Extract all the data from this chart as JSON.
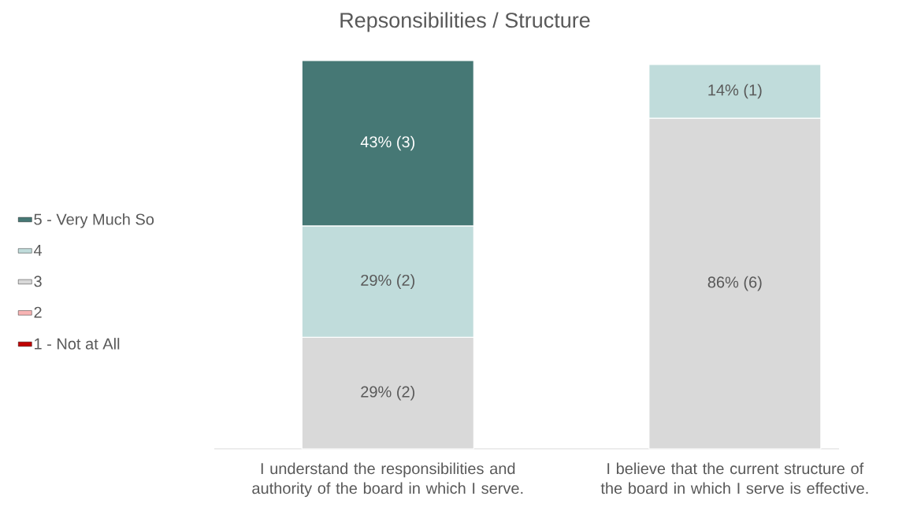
{
  "chart_data": {
    "type": "bar",
    "stacked": true,
    "title": "Repsonsibilities / Structure",
    "categories": [
      "I understand the responsibilities and authority of the board in which I serve.",
      "I believe that the current structure of the board in which I serve is effective."
    ],
    "series": [
      {
        "name": "1 - Not at All",
        "color": "#c00000",
        "values": [
          null,
          null
        ]
      },
      {
        "name": "2",
        "color": "#f8b4b4",
        "values": [
          null,
          null
        ]
      },
      {
        "name": "3",
        "color": "#d9d9d9",
        "values": [
          29,
          86
        ],
        "value_labels": [
          "29% (2)",
          "86% (6)"
        ]
      },
      {
        "name": "4",
        "color": "#c0dcdb",
        "values": [
          29,
          14
        ],
        "value_labels": [
          "29% (2)",
          "14% (1)"
        ]
      },
      {
        "name": "5 - Very Much So",
        "color": "#467875",
        "values": [
          43,
          null
        ],
        "value_labels": [
          "43% (3)",
          null
        ]
      }
    ],
    "ylim": [
      0,
      101
    ],
    "legend": "left",
    "tick_labels": "x"
  }
}
